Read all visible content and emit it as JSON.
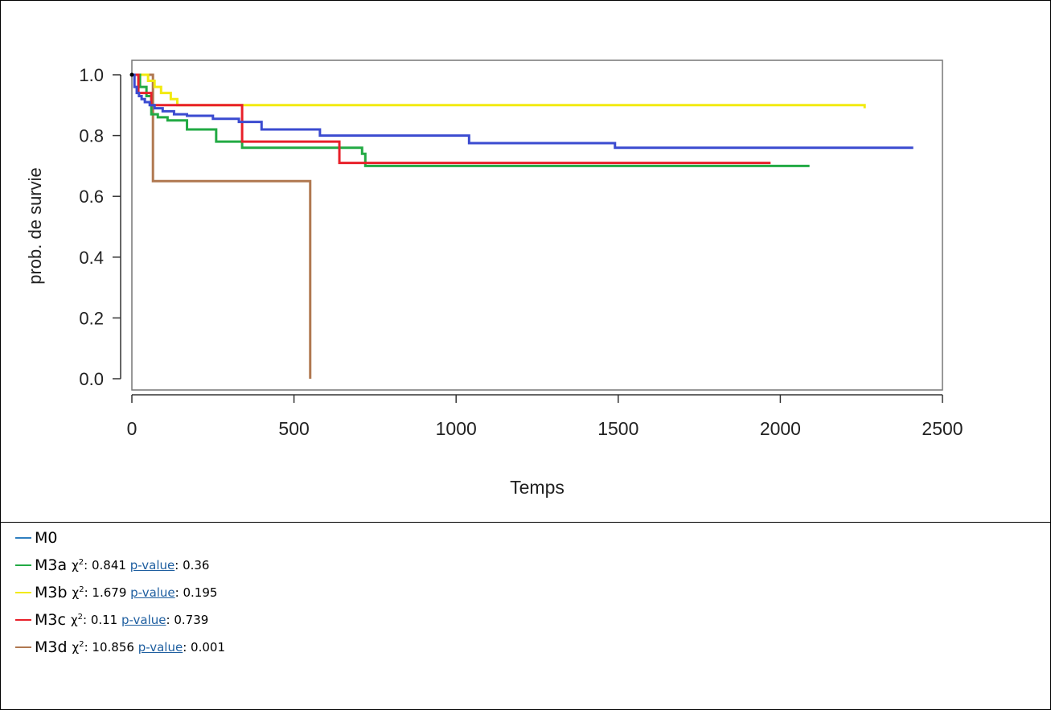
{
  "chart_data": {
    "type": "line",
    "step": true,
    "xlabel": "Temps",
    "ylabel": "prob. de survie",
    "xlim": [
      0,
      2500
    ],
    "ylim": [
      0,
      1.0
    ],
    "xticks": [
      0,
      500,
      1000,
      1500,
      2000,
      2500
    ],
    "yticks": [
      0.0,
      0.2,
      0.4,
      0.6,
      0.8,
      1.0
    ],
    "xtick_labels": [
      "0",
      "500",
      "1000",
      "1500",
      "2000",
      "2500"
    ],
    "ytick_labels": [
      "0.0",
      "0.2",
      "0.4",
      "0.6",
      "0.8",
      "1.0"
    ],
    "grid": false,
    "series": [
      {
        "name": "M0",
        "color": "#3b4bd0",
        "x": [
          0,
          8,
          15,
          22,
          30,
          40,
          55,
          70,
          95,
          130,
          170,
          250,
          330,
          400,
          580,
          1040,
          1490,
          2410
        ],
        "y": [
          1.0,
          0.96,
          0.94,
          0.93,
          0.92,
          0.91,
          0.9,
          0.89,
          0.88,
          0.87,
          0.865,
          0.855,
          0.845,
          0.82,
          0.8,
          0.775,
          0.76,
          0.76
        ]
      },
      {
        "name": "M3a",
        "color": "#22aa44",
        "x": [
          0,
          25,
          45,
          60,
          80,
          110,
          170,
          260,
          340,
          710,
          720,
          2090
        ],
        "y": [
          1.0,
          0.96,
          0.93,
          0.87,
          0.86,
          0.85,
          0.82,
          0.78,
          0.76,
          0.74,
          0.7,
          0.7
        ]
      },
      {
        "name": "M3b",
        "color": "#f2ea10",
        "x": [
          0,
          50,
          70,
          90,
          120,
          140,
          2260
        ],
        "y": [
          1.0,
          0.98,
          0.96,
          0.94,
          0.92,
          0.9,
          0.89
        ]
      },
      {
        "name": "M3c",
        "color": "#e8202a",
        "x": [
          0,
          20,
          60,
          340,
          640,
          1970
        ],
        "y": [
          1.0,
          0.94,
          0.9,
          0.78,
          0.71,
          0.71
        ]
      },
      {
        "name": "M3d",
        "color": "#b07850",
        "x": [
          0,
          65,
          550,
          550
        ],
        "y": [
          1.0,
          0.65,
          0.65,
          0.0
        ]
      }
    ]
  },
  "legend": [
    {
      "name": "M0",
      "color": "#2f7fc0"
    },
    {
      "name": "M3a",
      "color": "#22aa44",
      "chi_label": "χ",
      "chi_value": "0.841",
      "p_label": "p-value",
      "p_value": "0.36"
    },
    {
      "name": "M3b",
      "color": "#f2ea10",
      "chi_label": "χ",
      "chi_value": "1.679",
      "p_label": "p-value",
      "p_value": "0.195"
    },
    {
      "name": "M3c",
      "color": "#e8202a",
      "chi_label": "χ",
      "chi_value": "0.11",
      "p_label": "p-value",
      "p_value": "0.739"
    },
    {
      "name": "M3d",
      "color": "#b07850",
      "chi_label": "χ",
      "chi_value": "10.856",
      "p_label": "p-value",
      "p_value": "0.001"
    }
  ],
  "sup2": "2"
}
